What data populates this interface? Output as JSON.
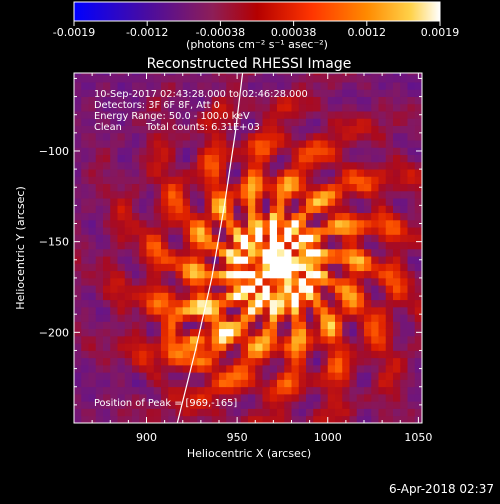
{
  "chart_data": {
    "type": "heatmap",
    "title": "Reconstructed RHESSI Image",
    "xlabel": "Heliocentric X (arcsec)",
    "ylabel": "Heliocentric Y (arcsec)",
    "xlim": [
      860,
      1052
    ],
    "ylim": [
      -250,
      -57
    ],
    "x_ticks": [
      900,
      950,
      1000,
      1050
    ],
    "y_ticks": [
      -100,
      -150,
      -200
    ],
    "colorbar": {
      "ticks": [
        "-0.0019",
        "-0.0012",
        "-0.00038",
        "0.00038",
        "0.0012",
        "0.0019"
      ],
      "unit_label": "(photons cm⁻² s⁻¹ asec⁻²)",
      "colormap": [
        "#0000ff",
        "#5a0a8c",
        "#8e1e57",
        "#c00000",
        "#ff3500",
        "#ff8a00",
        "#ffd24a",
        "#ffffff"
      ]
    },
    "annotations": {
      "time_range": "10-Sep-2017 02:43:28.000 to 02:46:28.000",
      "detectors": "Detectors: 3F 6F 8F, Att 0",
      "energy": "Energy Range: 50.0 - 100.0 keV",
      "clean": "Clean",
      "total_counts": "Total counts: 6.31E+03",
      "peak": "Position of Peak = [969,-165]"
    },
    "peak": {
      "x": 969,
      "y": -165
    },
    "limb_curve": [
      {
        "x": 917,
        "y": -250
      },
      {
        "x": 927,
        "y": -210
      },
      {
        "x": 936,
        "y": -170
      },
      {
        "x": 943,
        "y": -130
      },
      {
        "x": 949,
        "y": -90
      },
      {
        "x": 953,
        "y": -57
      }
    ]
  },
  "footer": {
    "date_stamp": "6-Apr-2018 02:37"
  }
}
